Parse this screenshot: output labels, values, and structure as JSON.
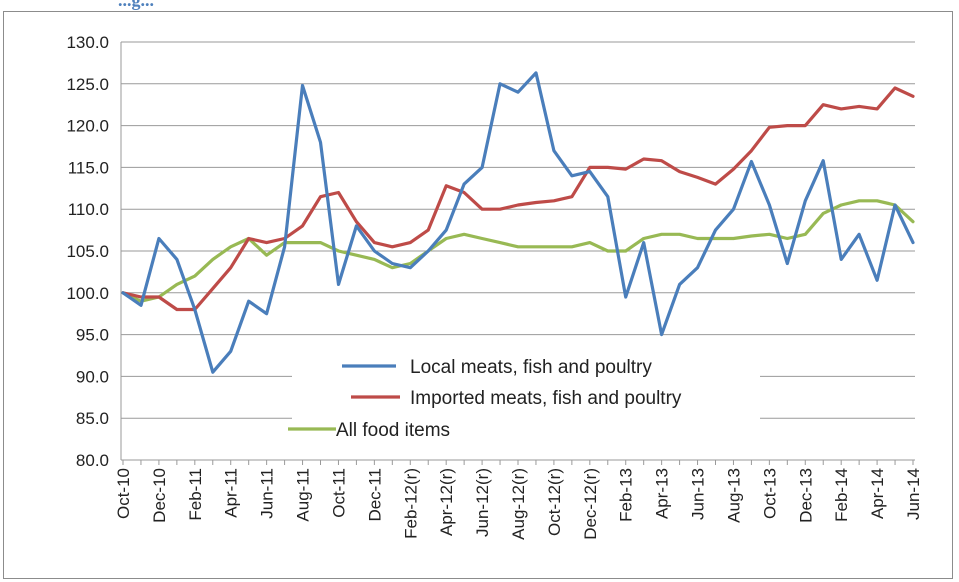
{
  "caption": "...g...",
  "chart_data": {
    "type": "line",
    "title": "",
    "xlabel": "",
    "ylabel": "",
    "ylim": [
      80,
      130
    ],
    "y_ticks": [
      "80.0",
      "85.0",
      "90.0",
      "95.0",
      "100.0",
      "105.0",
      "110.0",
      "115.0",
      "120.0",
      "125.0",
      "130.0"
    ],
    "grid": true,
    "legend_position": "inside lower center",
    "x": [
      "Oct-10",
      "Nov-10",
      "Dec-10",
      "Jan-11",
      "Feb-11",
      "Mar-11",
      "Apr-11",
      "May-11",
      "Jun-11",
      "Jul-11",
      "Aug-11",
      "Sep-11",
      "Oct-11",
      "Nov-11",
      "Dec-11",
      "Jan-12",
      "Feb-12(r)",
      "Mar-12(r)",
      "Apr-12(r)",
      "May-12(r)",
      "Jun-12(r)",
      "Jul-12(r)",
      "Aug-12(r)",
      "Sep-12(r)",
      "Oct-12(r)",
      "Nov-12(r)",
      "Dec-12(r)",
      "Jan-13",
      "Feb-13",
      "Mar-13",
      "Apr-13",
      "May-13",
      "Jun-13",
      "Jul-13",
      "Aug-13",
      "Sep-13",
      "Oct-13",
      "Nov-13",
      "Dec-13",
      "Jan-14",
      "Feb-14",
      "Mar-14",
      "Apr-14",
      "May-14",
      "Jun-14"
    ],
    "x_tick_labels": [
      "Oct-10",
      "Dec-10",
      "Feb-11",
      "Apr-11",
      "Jun-11",
      "Aug-11",
      "Oct-11",
      "Dec-11",
      "Feb-12(r)",
      "Apr-12(r)",
      "Jun-12(r)",
      "Aug-12(r)",
      "Oct-12(r)",
      "Dec-12(r)",
      "Feb-13",
      "Apr-13",
      "Jun-13",
      "Aug-13",
      "Oct-13",
      "Dec-13",
      "Feb-14",
      "Apr-14",
      "Jun-14"
    ],
    "series": [
      {
        "name": "Local meats, fish and poultry",
        "color": "#4a7ebb",
        "values": [
          100.0,
          98.5,
          106.5,
          104.0,
          98.0,
          90.5,
          93.0,
          99.0,
          97.5,
          105.5,
          124.8,
          118.0,
          101.0,
          108.0,
          105.0,
          103.5,
          103.0,
          105.0,
          107.5,
          113.0,
          115.0,
          125.0,
          124.0,
          126.3,
          117.0,
          114.0,
          114.5,
          111.5,
          99.5,
          106.0,
          95.0,
          101.0,
          103.0,
          107.5,
          110.0,
          115.7,
          110.5,
          103.5,
          111.0,
          115.8,
          104.0,
          107.0,
          101.5,
          110.5,
          106.0
        ]
      },
      {
        "name": "Imported meats, fish and poultry",
        "color": "#be4b48",
        "values": [
          100.0,
          99.5,
          99.5,
          98.0,
          98.0,
          100.5,
          103.0,
          106.5,
          106.0,
          106.5,
          108.0,
          111.5,
          112.0,
          108.5,
          106.0,
          105.5,
          106.0,
          107.5,
          112.8,
          112.0,
          110.0,
          110.0,
          110.5,
          110.8,
          111.0,
          111.5,
          115.0,
          115.0,
          114.8,
          116.0,
          115.8,
          114.5,
          113.8,
          113.0,
          114.8,
          117.0,
          119.8,
          120.0,
          120.0,
          122.5,
          122.0,
          122.3,
          122.0,
          124.5,
          123.5
        ]
      },
      {
        "name": "All food items",
        "color": "#98b954",
        "values": [
          100.0,
          99.0,
          99.5,
          101.0,
          102.0,
          104.0,
          105.5,
          106.5,
          104.5,
          106.0,
          106.0,
          106.0,
          105.0,
          104.5,
          104.0,
          103.0,
          103.5,
          105.0,
          106.5,
          107.0,
          106.5,
          106.0,
          105.5,
          105.5,
          105.5,
          105.5,
          106.0,
          105.0,
          105.0,
          106.5,
          107.0,
          107.0,
          106.5,
          106.5,
          106.5,
          106.8,
          107.0,
          106.5,
          107.0,
          109.5,
          110.5,
          111.0,
          111.0,
          110.5,
          108.5
        ]
      }
    ]
  }
}
